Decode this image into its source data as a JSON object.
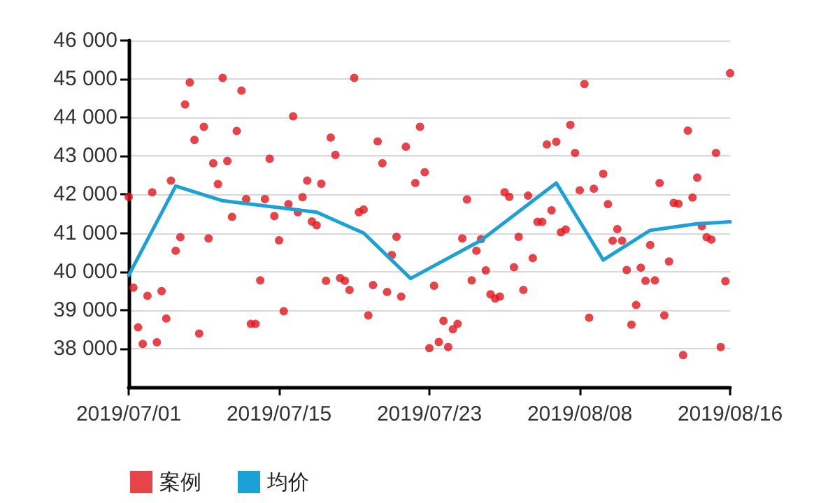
{
  "chart_data": {
    "type": "scatter",
    "categories": [
      "2019/07/01",
      null,
      null,
      null,
      null,
      null,
      null,
      null,
      null,
      null,
      null,
      null,
      null,
      null,
      null,
      null,
      null,
      null,
      null,
      null,
      null,
      null,
      null,
      null,
      null,
      null,
      null,
      null,
      null,
      null,
      null,
      null,
      "2019/07/15",
      null,
      null,
      null,
      null,
      null,
      null,
      null,
      null,
      null,
      null,
      null,
      null,
      null,
      null,
      null,
      null,
      null,
      null,
      null,
      null,
      null,
      null,
      null,
      null,
      null,
      null,
      null,
      null,
      null,
      null,
      null,
      "2019/07/23",
      null,
      null,
      null,
      null,
      null,
      null,
      null,
      null,
      null,
      null,
      null,
      null,
      null,
      null,
      null,
      null,
      null,
      null,
      null,
      null,
      null,
      null,
      null,
      null,
      null,
      null,
      null,
      null,
      null,
      null,
      null,
      "2019/08/08",
      null,
      null,
      null,
      null,
      null,
      null,
      null,
      null,
      null,
      null,
      null,
      null,
      null,
      null,
      null,
      null,
      null,
      null,
      null,
      null,
      null,
      null,
      null,
      null,
      null,
      null,
      null,
      null,
      null,
      null,
      null,
      "2019/08/16"
    ],
    "ylim": [
      37000,
      46000
    ],
    "yticks": [
      {
        "value": 38000,
        "label": "38 000"
      },
      {
        "value": 39000,
        "label": "39 000"
      },
      {
        "value": 40000,
        "label": "40 000"
      },
      {
        "value": 41000,
        "label": "41 000"
      },
      {
        "value": 42000,
        "label": "42 000"
      },
      {
        "value": 43000,
        "label": "43 000"
      },
      {
        "value": 44000,
        "label": "44 000"
      },
      {
        "value": 45000,
        "label": "45 000"
      },
      {
        "value": 46000,
        "label": "46 000"
      }
    ],
    "grid": "y",
    "legend": "bottom left",
    "series": [
      {
        "name": "案例",
        "marker": "circle",
        "color": "#e0151c",
        "values": [
          41940,
          39580,
          38550,
          38120,
          39370,
          42060,
          38160,
          39490,
          38780,
          42360,
          40540,
          40890,
          44340,
          44910,
          43420,
          38390,
          43760,
          40860,
          42810,
          42270,
          45030,
          42870,
          41420,
          43650,
          44700,
          41880,
          38640,
          38640,
          39770,
          41880,
          42930,
          41440,
          40810,
          38970,
          41750,
          44030,
          41540,
          41930,
          42360,
          41300,
          41200,
          42280,
          39760,
          43480,
          43030,
          39830,
          39760,
          39520,
          45030,
          41540,
          41610,
          38860,
          39650,
          43380,
          42810,
          39470,
          40430,
          40900,
          39350,
          43240,
          null,
          42300,
          43760,
          42580,
          38010,
          39630,
          38170,
          38720,
          38040,
          38500,
          38640,
          40860,
          41870,
          39770,
          40540,
          40840,
          40030,
          39410,
          39300,
          39350,
          42060,
          41940,
          40110,
          40900,
          39520,
          41970,
          40350,
          41290,
          41290,
          43300,
          41590,
          43370,
          41020,
          41090,
          43810,
          43080,
          42110,
          44870,
          38800,
          42150,
          null,
          42540,
          41750,
          40800,
          41100,
          40800,
          40040,
          38620,
          39130,
          40100,
          39760,
          40690,
          39770,
          42300,
          38860,
          40260,
          41780,
          41760,
          37830,
          43660,
          41920,
          42440,
          41180,
          40890,
          40830,
          43080,
          38040,
          39750,
          45150
        ]
      },
      {
        "name": "均价",
        "type": "line",
        "marker": "none",
        "color": "#1ba1d6",
        "values": [
          39900,
          null,
          null,
          null,
          null,
          null,
          null,
          null,
          null,
          null,
          42220,
          null,
          null,
          null,
          null,
          null,
          null,
          null,
          null,
          null,
          41840,
          null,
          null,
          null,
          null,
          null,
          null,
          null,
          null,
          null,
          null,
          null,
          null,
          null,
          null,
          null,
          null,
          null,
          null,
          null,
          41540,
          null,
          null,
          null,
          null,
          null,
          null,
          null,
          null,
          null,
          41000,
          null,
          null,
          null,
          null,
          null,
          null,
          null,
          null,
          null,
          39820,
          null,
          null,
          null,
          null,
          null,
          null,
          null,
          null,
          null,
          null,
          null,
          null,
          null,
          null,
          40810,
          null,
          null,
          null,
          null,
          null,
          null,
          null,
          null,
          null,
          null,
          null,
          null,
          null,
          null,
          null,
          42300,
          null,
          null,
          null,
          null,
          null,
          null,
          null,
          null,
          null,
          40300,
          null,
          null,
          null,
          null,
          null,
          null,
          null,
          null,
          null,
          41070,
          null,
          null,
          null,
          null,
          null,
          null,
          null,
          null,
          null,
          41240,
          null,
          null,
          null,
          null,
          null,
          null,
          41290
        ]
      }
    ]
  }
}
